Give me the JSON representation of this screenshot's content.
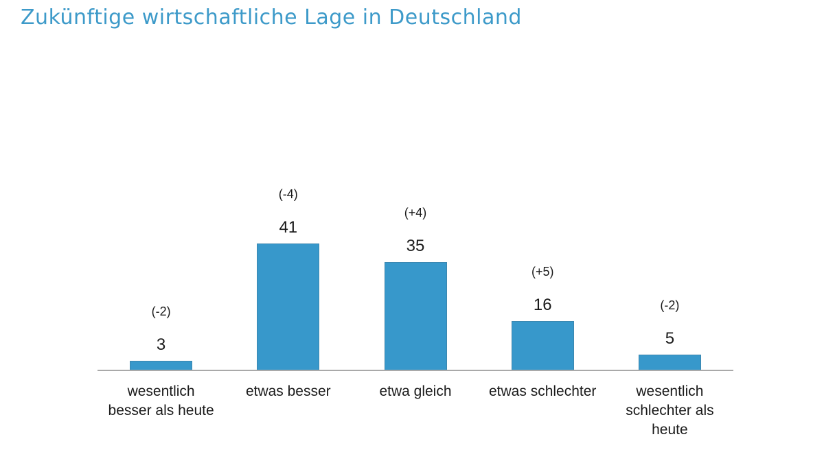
{
  "title": "Zukünftige wirtschaftliche Lage in Deutschland",
  "colors": {
    "title": "#3d9ac9",
    "bar": "#3798cb",
    "axis": "#a9a9a9",
    "text": "#1a1a1a",
    "background": "#ffffff"
  },
  "chart_data": {
    "type": "bar",
    "title": "Zukünftige wirtschaftliche Lage in Deutschland",
    "categories": [
      "wesentlich besser als heute",
      "etwas besser",
      "etwa gleich",
      "etwas schlechter",
      "wesentlich schlechter als heute"
    ],
    "category_display": [
      "wesentlich\nbesser als heute",
      "etwas besser",
      "etwa gleich",
      "etwas schlechter",
      "wesentlich\nschlechter als\nheute"
    ],
    "values": [
      3,
      41,
      35,
      16,
      5
    ],
    "value_labels": [
      "3",
      "41",
      "35",
      "16",
      "5"
    ],
    "change_labels": [
      "(-2)",
      "(-4)",
      "(+4)",
      "(+5)",
      "(-2)"
    ],
    "xlabel": "",
    "ylabel": "",
    "ylim": [
      0,
      45
    ],
    "grid": false,
    "legend": null
  }
}
